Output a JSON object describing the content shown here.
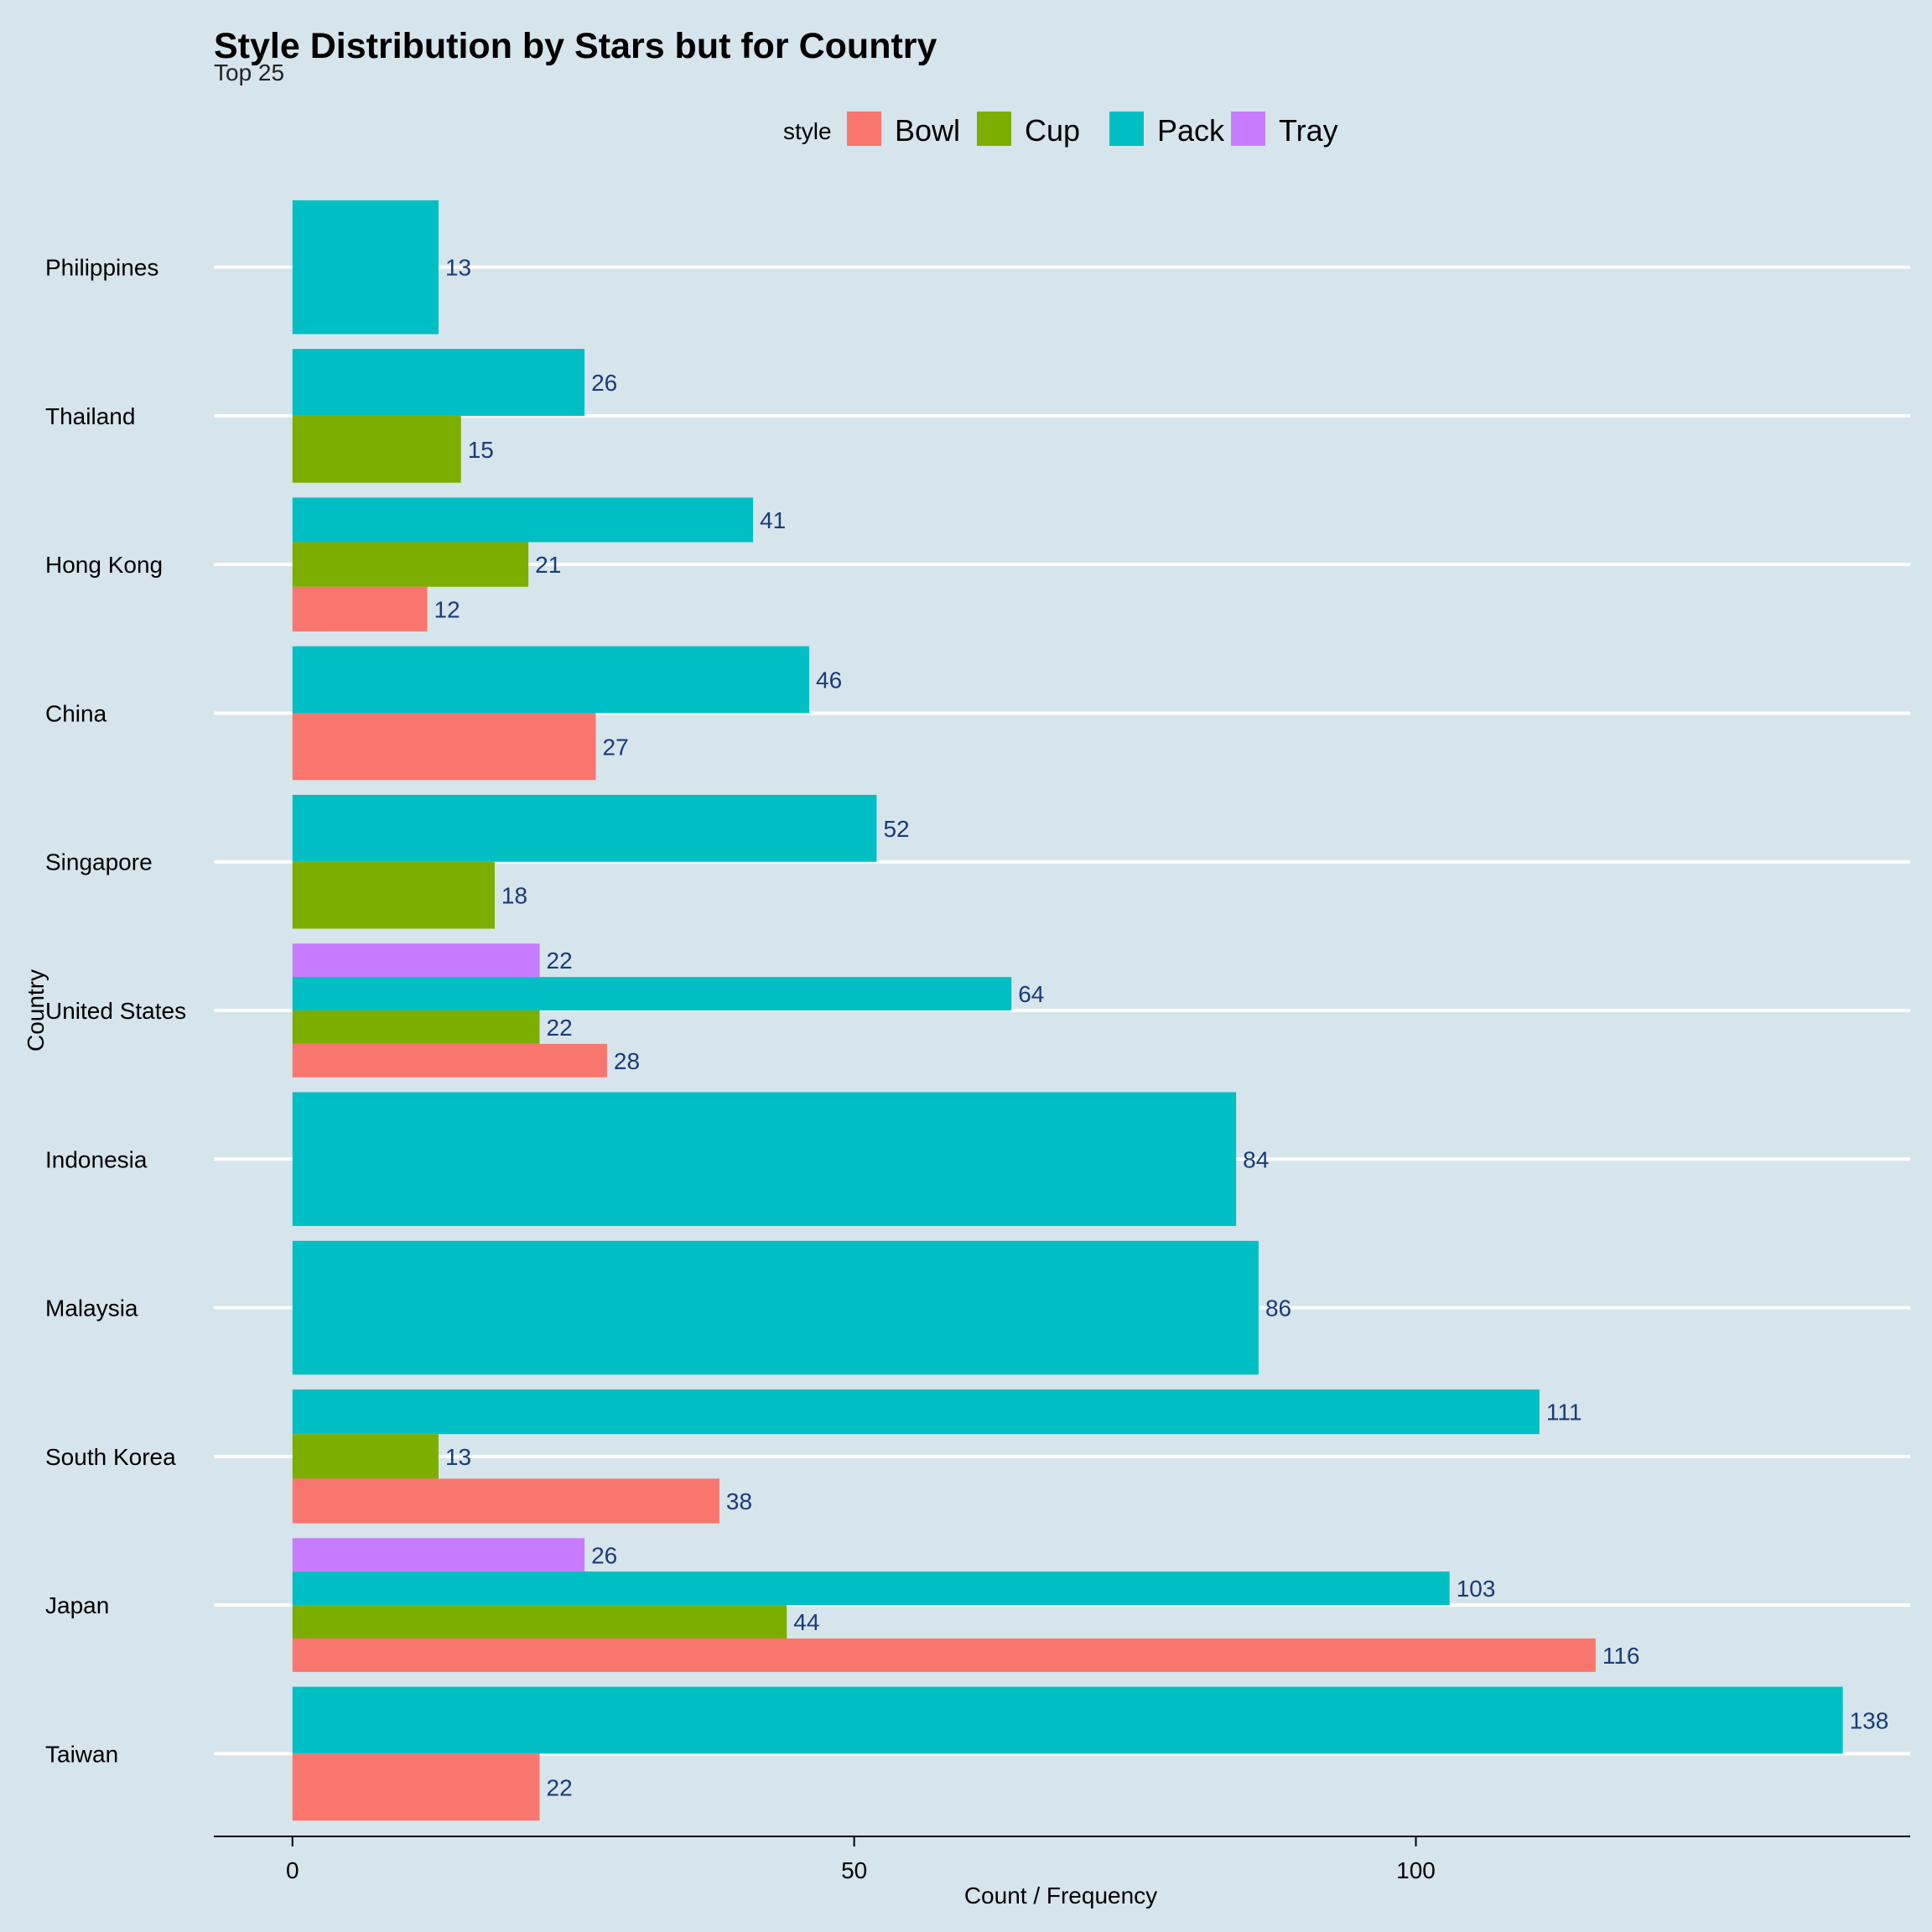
{
  "chart_data": {
    "type": "bar",
    "orientation": "horizontal",
    "title": "Style Distribution by Stars but for Country",
    "subtitle": "Top 25",
    "xlabel": "Count / Frequency",
    "ylabel": "Country",
    "xlim": [
      -7,
      144
    ],
    "xticks": [
      0,
      50,
      100
    ],
    "grid": "major y only",
    "legend": {
      "title": "style",
      "position": "top",
      "items": [
        {
          "name": "Bowl",
          "color": "#F8766D"
        },
        {
          "name": "Cup",
          "color": "#7CAE00"
        },
        {
          "name": "Pack",
          "color": "#00BFC4"
        },
        {
          "name": "Tray",
          "color": "#C77CFF"
        }
      ]
    },
    "categories": [
      "Philippines",
      "Thailand",
      "Hong Kong",
      "China",
      "Singapore",
      "United States",
      "Indonesia",
      "Malaysia",
      "South Korea",
      "Japan",
      "Taiwan"
    ],
    "bars": [
      {
        "country": "Philippines",
        "style": "Pack",
        "value": 13,
        "label": "13"
      },
      {
        "country": "Thailand",
        "style": "Pack",
        "value": 26,
        "label": "26"
      },
      {
        "country": "Thailand",
        "style": "Cup",
        "value": 15,
        "label": "15"
      },
      {
        "country": "Hong Kong",
        "style": "Pack",
        "value": 41,
        "label": "41"
      },
      {
        "country": "Hong Kong",
        "style": "Cup",
        "value": 21,
        "label": "21"
      },
      {
        "country": "Hong Kong",
        "style": "Bowl",
        "value": 12,
        "label": "12"
      },
      {
        "country": "China",
        "style": "Pack",
        "value": 46,
        "label": "46"
      },
      {
        "country": "China",
        "style": "Bowl",
        "value": 27,
        "label": "27"
      },
      {
        "country": "Singapore",
        "style": "Pack",
        "value": 52,
        "label": "52"
      },
      {
        "country": "Singapore",
        "style": "Cup",
        "value": 18,
        "label": "18"
      },
      {
        "country": "United States",
        "style": "Tray",
        "value": 22,
        "label": "22"
      },
      {
        "country": "United States",
        "style": "Pack",
        "value": 64,
        "label": "64"
      },
      {
        "country": "United States",
        "style": "Cup",
        "value": 22,
        "label": "22"
      },
      {
        "country": "United States",
        "style": "Bowl",
        "value": 28,
        "label": "28"
      },
      {
        "country": "Indonesia",
        "style": "Pack",
        "value": 84,
        "label": "84"
      },
      {
        "country": "Malaysia",
        "style": "Pack",
        "value": 86,
        "label": "86"
      },
      {
        "country": "South Korea",
        "style": "Pack",
        "value": 111,
        "label": "111"
      },
      {
        "country": "South Korea",
        "style": "Cup",
        "value": 13,
        "label": "13"
      },
      {
        "country": "South Korea",
        "style": "Bowl",
        "value": 38,
        "label": "38"
      },
      {
        "country": "Japan",
        "style": "Tray",
        "value": 26,
        "label": "26"
      },
      {
        "country": "Japan",
        "style": "Pack",
        "value": 103,
        "label": "103"
      },
      {
        "country": "Japan",
        "style": "Cup",
        "value": 44,
        "label": "44"
      },
      {
        "country": "Japan",
        "style": "Bowl",
        "value": 116,
        "label": "116"
      },
      {
        "country": "Taiwan",
        "style": "Pack",
        "value": 138,
        "label": "138"
      },
      {
        "country": "Taiwan",
        "style": "Bowl",
        "value": 22,
        "label": "22"
      }
    ]
  }
}
